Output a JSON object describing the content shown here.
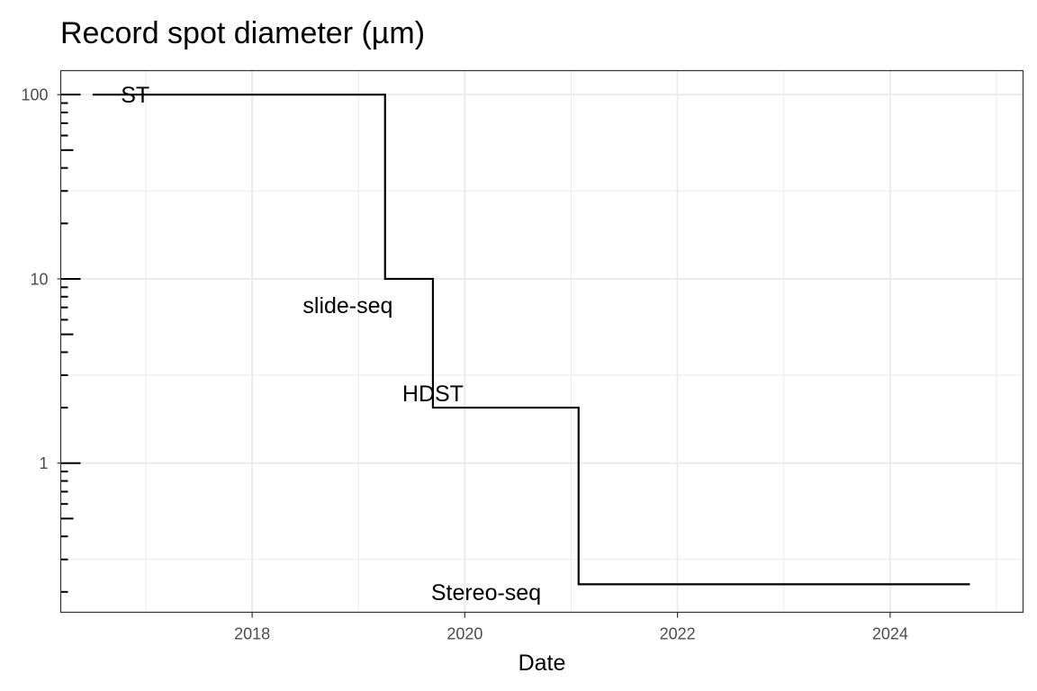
{
  "chart_data": {
    "type": "line",
    "step": true,
    "title": "Record spot diameter (µm)",
    "xlabel": "Date",
    "ylabel": "",
    "yscale": "log",
    "xlim": [
      2016.2,
      2025.25
    ],
    "ylim": [
      0.155,
      135
    ],
    "x_ticks": [
      {
        "value": 2018,
        "label": "2018"
      },
      {
        "value": 2020,
        "label": "2020"
      },
      {
        "value": 2022,
        "label": "2022"
      },
      {
        "value": 2024,
        "label": "2024"
      }
    ],
    "y_ticks": [
      {
        "value": 1,
        "label": "1"
      },
      {
        "value": 10,
        "label": "10"
      },
      {
        "value": 100,
        "label": "100"
      }
    ],
    "grid": true,
    "legend": "none",
    "series": [
      {
        "x": [
          2016.5,
          2019.25,
          2019.25,
          2019.7,
          2019.7,
          2021.07,
          2021.07,
          2024.75
        ],
        "y": [
          100,
          100,
          10,
          10,
          2,
          2,
          0.22,
          0.22
        ]
      }
    ],
    "annotations": [
      {
        "text": "ST",
        "x": 2016.9,
        "y": 100
      },
      {
        "text": "slide-seq",
        "x": 2018.9,
        "y": 7.2
      },
      {
        "text": "HDST",
        "x": 2019.7,
        "y": 2.4
      },
      {
        "text": "Stereo-seq",
        "x": 2020.2,
        "y": 0.2
      }
    ]
  }
}
